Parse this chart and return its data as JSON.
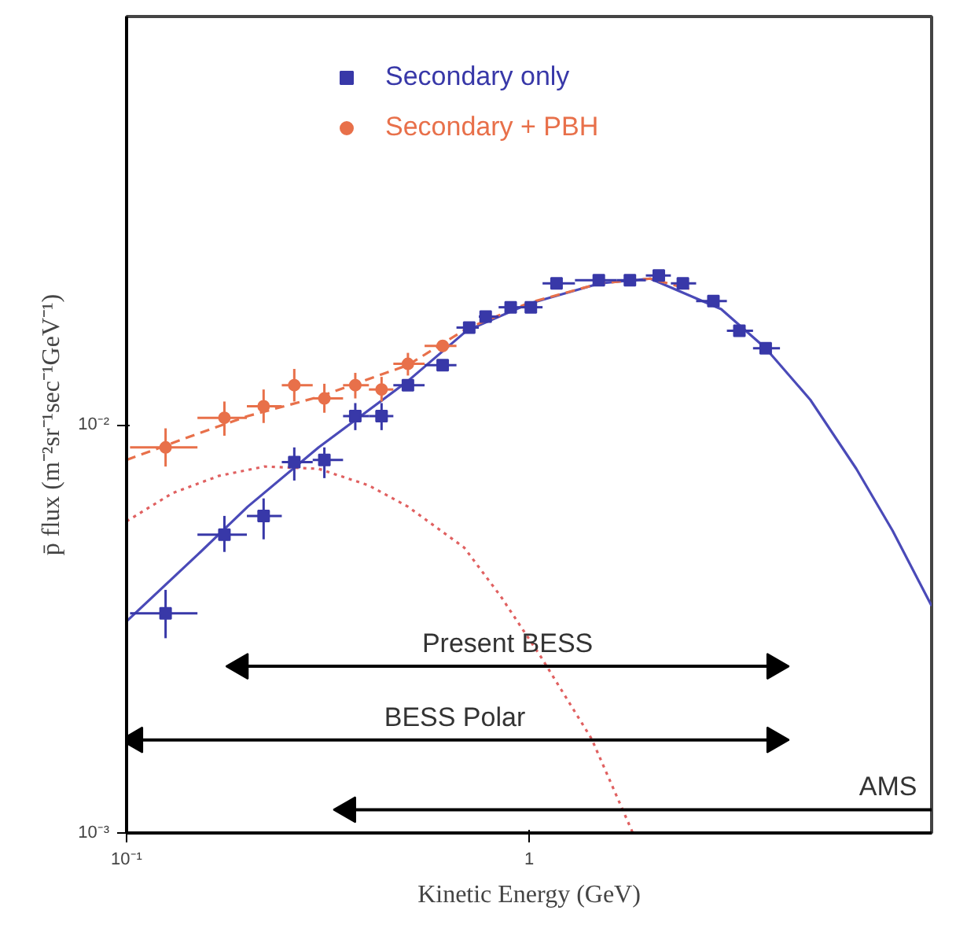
{
  "chart_data": {
    "type": "scatter",
    "xlabel": "Kinetic Energy (GeV)",
    "ylabel": "p̄ flux (m⁻²sr⁻¹sec⁻¹GeV⁻¹)",
    "log": "xy",
    "xlim": [
      0.1,
      10
    ],
    "ylim": [
      0.001,
      0.1
    ],
    "xticks": [
      {
        "value": 0.1,
        "label": "10⁻¹"
      },
      1
    ],
    "yticks": [
      {
        "value": 0.001,
        "label": "10⁻³"
      },
      {
        "value": 0.01,
        "label": "10⁻²"
      }
    ],
    "grid": false,
    "legend": "top",
    "series": [
      {
        "type": "line",
        "color": "#4a4ab8",
        "line_style": "solid",
        "x": [
          0.1,
          0.15,
          0.2,
          0.3,
          0.5,
          0.7,
          1,
          1.5,
          2,
          3,
          3.87,
          5,
          6.5,
          8,
          10
        ],
        "values": [
          0.0033,
          0.0048,
          0.0063,
          0.0088,
          0.0128,
          0.017,
          0.0198,
          0.0222,
          0.0228,
          0.0192,
          0.0154,
          0.0115,
          0.0078,
          0.0055,
          0.0036
        ]
      },
      {
        "type": "line",
        "color": "#e8704a",
        "line_style": "dashed",
        "x": [
          0.1,
          0.15,
          0.2,
          0.3,
          0.5,
          0.7,
          1,
          1.5,
          2,
          2.5
        ],
        "values": [
          0.0082,
          0.0095,
          0.0105,
          0.0117,
          0.014,
          0.0172,
          0.0199,
          0.0222,
          0.0228,
          0.0215
        ]
      },
      {
        "type": "line",
        "color": "#e06060",
        "line_style": "dotted",
        "x": [
          0.1,
          0.13,
          0.17,
          0.22,
          0.3,
          0.4,
          0.5,
          0.69,
          0.85,
          1.07,
          1.43,
          1.81
        ],
        "values": [
          0.0058,
          0.0068,
          0.0075,
          0.0079,
          0.0078,
          0.0071,
          0.0063,
          0.005,
          0.0038,
          0.0027,
          0.0017,
          0.001
        ]
      },
      {
        "name": "Secondary + PBH",
        "color": "#e8704a",
        "marker": "circle",
        "x": [
          0.125,
          0.175,
          0.219,
          0.261,
          0.31,
          0.37,
          0.43,
          0.5,
          0.61
        ],
        "values": [
          0.0088,
          0.0104,
          0.0111,
          0.0125,
          0.0116,
          0.0125,
          0.0122,
          0.0141,
          0.0156
        ],
        "errors": [
          [
            0.0079,
            0.0098
          ],
          [
            0.0094,
            0.0114
          ],
          [
            0.0101,
            0.0122
          ],
          [
            0.0114,
            0.0137
          ],
          [
            0.0107,
            0.0126
          ],
          [
            0.0116,
            0.0134
          ],
          [
            0.0114,
            0.0131
          ],
          [
            0.0132,
            0.015
          ],
          null
        ],
        "xerrors": [
          [
            0.102,
            0.15
          ],
          [
            0.15,
            0.199
          ],
          [
            0.199,
            0.243
          ],
          [
            0.243,
            0.29
          ],
          [
            0.29,
            0.345
          ],
          [
            0.345,
            0.4
          ],
          [
            0.4,
            0.46
          ],
          [
            0.46,
            0.55
          ],
          [
            0.55,
            0.66
          ]
        ]
      },
      {
        "name": "Secondary only",
        "color": "#3838a8",
        "marker": "square",
        "x": [
          0.125,
          0.175,
          0.219,
          0.261,
          0.31,
          0.37,
          0.43,
          0.5,
          0.61,
          0.71,
          0.78,
          0.9,
          1.01,
          1.17,
          1.49,
          1.78,
          2.1,
          2.41,
          2.87,
          3.33,
          3.87
        ],
        "values": [
          0.00345,
          0.00538,
          0.00598,
          0.0081,
          0.0082,
          0.0105,
          0.0105,
          0.0125,
          0.014,
          0.0173,
          0.0184,
          0.0194,
          0.0194,
          0.0222,
          0.0226,
          0.0226,
          0.0232,
          0.0222,
          0.0201,
          0.017,
          0.0154
        ],
        "errors": [
          [
            0.003,
            0.00394
          ],
          [
            0.00488,
            0.00598
          ],
          [
            0.00524,
            0.0066
          ],
          [
            0.0073,
            0.0088
          ],
          [
            0.0074,
            0.0088
          ],
          [
            0.0097,
            0.0113
          ],
          [
            0.0097,
            0.0113
          ],
          null,
          null,
          null,
          null,
          null,
          null,
          null,
          null,
          null,
          null,
          null,
          null,
          null,
          null
        ],
        "xerrors": [
          [
            0.102,
            0.15
          ],
          [
            0.15,
            0.199
          ],
          [
            0.199,
            0.243
          ],
          [
            0.243,
            0.29
          ],
          [
            0.29,
            0.345
          ],
          [
            0.345,
            0.4
          ],
          [
            0.4,
            0.46
          ],
          [
            0.46,
            0.55
          ],
          [
            0.55,
            0.66
          ],
          [
            0.66,
            0.75
          ],
          [
            0.75,
            0.84
          ],
          [
            0.84,
            0.95
          ],
          [
            0.95,
            1.08
          ],
          [
            1.08,
            1.3
          ],
          [
            1.3,
            1.65
          ],
          [
            1.65,
            1.95
          ],
          [
            1.95,
            2.25
          ],
          [
            2.25,
            2.6
          ],
          [
            2.6,
            3.1
          ],
          [
            3.1,
            3.6
          ],
          [
            3.6,
            4.2
          ]
        ]
      },
      {
        "type": "line",
        "name": "Present BESS",
        "color": "#000000",
        "line_style": "solid",
        "marker": "triangle",
        "x": [
          0.192,
          4.07
        ],
        "values": [
          0.00256,
          0.00256
        ]
      },
      {
        "type": "line",
        "name": "BESS Polar",
        "color": "#000000",
        "line_style": "solid",
        "marker": "triangle",
        "x": [
          0.105,
          4.07
        ],
        "values": [
          0.00169,
          0.00169
        ]
      },
      {
        "type": "line",
        "name": "AMS",
        "color": "#000000",
        "line_style": "solid",
        "marker": "triangle",
        "x": [
          0.355,
          10
        ],
        "values": [
          0.00114,
          0.00114
        ]
      }
    ]
  }
}
